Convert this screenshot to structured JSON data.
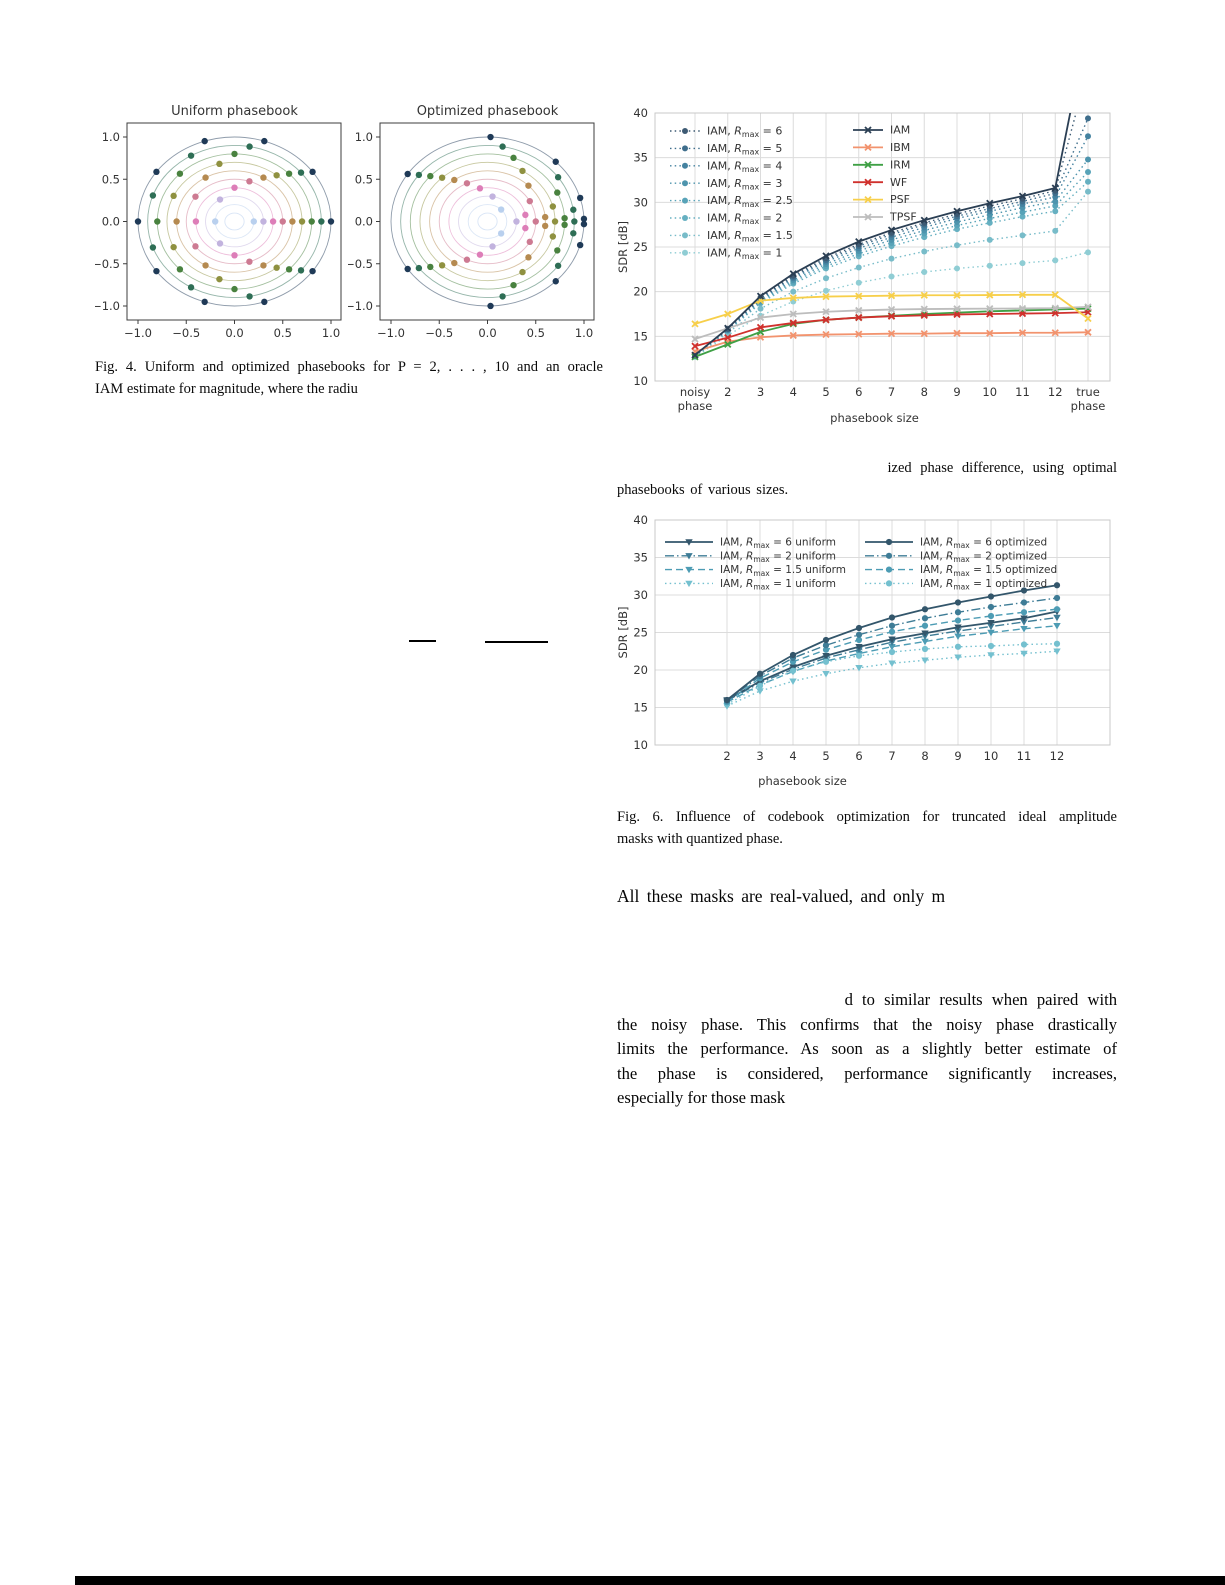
{
  "fig4": {
    "caption_lines": [
      "Fig. 4.   Uniform and optimized phasebooks for P = 2, . . . , 10 and an oracle",
      "IAM estimate for magnitude, where the radiu"
    ],
    "axis_ticks": [
      "−1.0",
      "−0.5",
      "0.0",
      "0.5",
      "1.0"
    ],
    "plots": [
      {
        "title": "Uniform phasebook",
        "angles_key": "uniform"
      },
      {
        "title": "Optimized phasebook",
        "angles_key": "optimized"
      }
    ],
    "extra_inner_circle_r": 0.1,
    "rings": [
      {
        "r": 0.2,
        "color": "#b9d0ee",
        "uniform": [
          0,
          180
        ],
        "optimized": [
          45,
          -45
        ]
      },
      {
        "r": 0.3,
        "color": "#c2b3de",
        "uniform": [
          0,
          120,
          240
        ],
        "optimized": [
          0,
          80,
          -80
        ]
      },
      {
        "r": 0.4,
        "color": "#dd7eb8",
        "uniform": [
          0,
          90,
          180,
          270
        ],
        "optimized": [
          11.3,
          -11.3,
          101.3,
          -101.3
        ]
      },
      {
        "r": 0.5,
        "color": "#cd7a92",
        "uniform": [
          0,
          72,
          144,
          216,
          288
        ],
        "optimized": [
          0,
          28.8,
          -28.8,
          115.2,
          -115.2
        ]
      },
      {
        "r": 0.6,
        "color": "#b58a50",
        "uniform": [
          0,
          60,
          120,
          180,
          240,
          300
        ],
        "optimized": [
          5,
          -5,
          45,
          -45,
          125,
          -125
        ]
      },
      {
        "r": 0.7,
        "color": "#8f9140",
        "uniform": [
          0,
          51.4,
          102.9,
          154.3,
          205.7,
          257.1,
          308.6
        ],
        "optimized": [
          0,
          14.7,
          -14.7,
          58.8,
          -58.8,
          132.2,
          -132.2
        ]
      },
      {
        "r": 0.8,
        "color": "#49823f",
        "uniform": [
          0,
          45,
          90,
          135,
          180,
          225,
          270,
          315
        ],
        "optimized": [
          2.8,
          -2.8,
          25.3,
          -25.3,
          70.3,
          -70.3,
          137.8,
          -137.8
        ]
      },
      {
        "r": 0.9,
        "color": "#2e6e55",
        "uniform": [
          0,
          40,
          80,
          120,
          160,
          200,
          240,
          280,
          320
        ],
        "optimized": [
          0,
          8.9,
          -8.9,
          35.6,
          -35.6,
          80,
          -80,
          142.2,
          -142.2
        ]
      },
      {
        "r": 1.0,
        "color": "#1f3a57",
        "uniform": [
          0,
          36,
          72,
          108,
          144,
          180,
          216,
          252,
          288,
          324
        ],
        "optimized": [
          1.8,
          -1.8,
          16.2,
          -16.2,
          45,
          -45,
          88.2,
          -88.2,
          145.8,
          -145.8
        ]
      }
    ]
  },
  "fig5_fragment": {
    "line1": "ized phase difference, using optimal",
    "line2": "phasebooks of various sizes."
  },
  "fig6_caption_lines": [
    "Fig. 6.   Influence of codebook optimization for truncated ideal amplitude",
    "masks with quantized phase."
  ],
  "fragments": {
    "all_masks": "All these masks are real-valued, and only m",
    "para_lines": [
      "d to similar results when paired with",
      "the noisy phase. This confirms that the noisy phase drastically",
      "limits the performance. As soon as a slightly better estimate of",
      "the phase is considered, performance significantly increases,",
      "especially for those mask"
    ]
  },
  "chart_data": [
    {
      "id": "chart-top",
      "type": "line",
      "title": "",
      "xlabel": "phasebook size",
      "ylabel": "SDR [dB]",
      "ylim": [
        10,
        40
      ],
      "yticks": [
        10,
        15,
        20,
        25,
        30,
        35,
        40
      ],
      "grid": true,
      "legend_position": "upper left",
      "categories": [
        "noisy|phase",
        "2",
        "3",
        "4",
        "5",
        "6",
        "7",
        "8",
        "9",
        "10",
        "11",
        "12",
        "true|phase"
      ],
      "series": [
        {
          "name": "IAM, R_max = 6",
          "color": "#3d5a73",
          "dash": "dotted",
          "marker": "circle",
          "values": [
            12.9,
            15.85,
            19.35,
            21.8,
            23.75,
            25.3,
            26.6,
            27.7,
            28.7,
            29.6,
            30.4,
            31.3,
            45
          ]
        },
        {
          "name": "IAM, R_max = 5",
          "color": "#3f6e8c",
          "dash": "dotted",
          "marker": "circle",
          "values": [
            12.9,
            15.8,
            19.25,
            21.65,
            23.55,
            25.1,
            26.4,
            27.5,
            28.45,
            29.3,
            30.1,
            31.0,
            39.4
          ]
        },
        {
          "name": "IAM, R_max = 4",
          "color": "#4482a0",
          "dash": "dotted",
          "marker": "circle",
          "values": [
            12.85,
            15.75,
            19.15,
            21.5,
            23.35,
            24.85,
            26.1,
            27.2,
            28.2,
            29.0,
            29.8,
            30.6,
            37.4
          ]
        },
        {
          "name": "IAM, R_max = 3",
          "color": "#4d94ad",
          "dash": "dotted",
          "marker": "circle",
          "values": [
            12.85,
            15.7,
            19.0,
            21.3,
            23.1,
            24.55,
            25.8,
            26.85,
            27.8,
            28.6,
            29.4,
            30.1,
            34.8
          ]
        },
        {
          "name": "IAM, R_max = 2.5",
          "color": "#58a3b8",
          "dash": "dotted",
          "marker": "circle",
          "values": [
            12.8,
            15.65,
            18.85,
            21.1,
            22.85,
            24.25,
            25.45,
            26.5,
            27.4,
            28.2,
            28.9,
            29.6,
            33.4
          ]
        },
        {
          "name": "IAM, R_max = 2",
          "color": "#66b0c1",
          "dash": "dotted",
          "marker": "circle",
          "values": [
            12.8,
            15.6,
            18.7,
            20.9,
            22.6,
            23.95,
            25.1,
            26.1,
            27.0,
            27.7,
            28.4,
            29.0,
            32.3
          ]
        },
        {
          "name": "IAM, R_max = 1.5",
          "color": "#78bcc9",
          "dash": "dotted",
          "marker": "circle",
          "values": [
            12.75,
            15.4,
            18.1,
            20.0,
            21.5,
            22.7,
            23.7,
            24.5,
            25.2,
            25.8,
            26.3,
            26.8,
            31.2
          ]
        },
        {
          "name": "IAM, R_max = 1",
          "color": "#8fcdd4",
          "dash": "dotted",
          "marker": "circle",
          "values": [
            12.7,
            15.1,
            17.3,
            18.9,
            20.1,
            21.0,
            21.7,
            22.2,
            22.6,
            22.9,
            23.2,
            23.5,
            24.4
          ]
        },
        {
          "name": "IAM",
          "color": "#2b3f54",
          "dash": "solid",
          "marker": "x",
          "values": [
            12.9,
            15.9,
            19.5,
            22.0,
            24.0,
            25.6,
            26.9,
            28.0,
            29.0,
            29.9,
            30.7,
            31.6,
            50
          ]
        },
        {
          "name": "IBM",
          "color": "#f2936e",
          "dash": "solid",
          "marker": "x",
          "values": [
            13.3,
            14.4,
            14.9,
            15.1,
            15.2,
            15.25,
            15.3,
            15.3,
            15.35,
            15.35,
            15.4,
            15.4,
            15.45
          ]
        },
        {
          "name": "IRM",
          "color": "#3fa045",
          "dash": "solid",
          "marker": "x",
          "values": [
            12.7,
            14.1,
            15.5,
            16.4,
            16.85,
            17.1,
            17.3,
            17.5,
            17.65,
            17.8,
            17.9,
            18.0,
            18.1
          ]
        },
        {
          "name": "WF",
          "color": "#d0312d",
          "dash": "solid",
          "marker": "x",
          "values": [
            13.9,
            14.85,
            16.0,
            16.5,
            16.85,
            17.1,
            17.25,
            17.35,
            17.45,
            17.5,
            17.55,
            17.6,
            17.7
          ]
        },
        {
          "name": "PSF",
          "color": "#f7cf4a",
          "dash": "solid",
          "marker": "x",
          "values": [
            16.4,
            17.5,
            19.0,
            19.3,
            19.45,
            19.5,
            19.55,
            19.6,
            19.6,
            19.62,
            19.65,
            19.65,
            17.0
          ]
        },
        {
          "name": "TPSF",
          "color": "#bdbdbd",
          "dash": "solid",
          "marker": "x",
          "values": [
            14.7,
            15.9,
            17.1,
            17.5,
            17.75,
            17.9,
            18.0,
            18.05,
            18.08,
            18.1,
            18.12,
            18.15,
            18.3
          ]
        }
      ],
      "legend_columns": [
        [
          0,
          1,
          2,
          3,
          4,
          5,
          6,
          7
        ],
        [
          8,
          9,
          10,
          11,
          12,
          13
        ]
      ],
      "draw_order": [
        7,
        6,
        5,
        4,
        3,
        2,
        1,
        0,
        9,
        10,
        11,
        13,
        12,
        8
      ]
    },
    {
      "id": "chart-bottom",
      "type": "line",
      "title": "",
      "xlabel": "phasebook size",
      "ylabel": "SDR [dB]",
      "ylim": [
        10,
        40
      ],
      "yticks": [
        10,
        15,
        20,
        25,
        30,
        35,
        40
      ],
      "grid": true,
      "legend_position": "upper left",
      "categories": [
        "2",
        "3",
        "4",
        "5",
        "6",
        "7",
        "8",
        "9",
        "10",
        "11",
        "12"
      ],
      "series": [
        {
          "name": "IAM, R_max = 6 uniform",
          "color": "#33566b",
          "dash": "solid",
          "marker": "triangle",
          "values": [
            16.0,
            18.5,
            20.4,
            21.9,
            23.1,
            24.1,
            24.9,
            25.7,
            26.3,
            26.9,
            27.8
          ]
        },
        {
          "name": "IAM, R_max = 2 uniform",
          "color": "#3e7c96",
          "dash": "dashdot",
          "marker": "triangle",
          "values": [
            15.9,
            18.3,
            20.1,
            21.6,
            22.7,
            23.7,
            24.5,
            25.2,
            25.8,
            26.4,
            27.0
          ]
        },
        {
          "name": "IAM, R_max = 1.5 uniform",
          "color": "#4d9cb4",
          "dash": "dashed",
          "marker": "triangle",
          "values": [
            15.7,
            18.0,
            19.8,
            21.2,
            22.2,
            23.1,
            23.8,
            24.5,
            25.0,
            25.5,
            25.9
          ]
        },
        {
          "name": "IAM, R_max = 1 uniform",
          "color": "#74c0cf",
          "dash": "dotted",
          "marker": "triangle",
          "values": [
            15.2,
            17.2,
            18.5,
            19.5,
            20.3,
            20.9,
            21.3,
            21.7,
            22.0,
            22.2,
            22.5
          ]
        },
        {
          "name": "IAM, R_max = 6 optimized",
          "color": "#33566b",
          "dash": "solid",
          "marker": "circle",
          "values": [
            16.0,
            19.5,
            22.0,
            24.0,
            25.6,
            27.0,
            28.1,
            29.0,
            29.8,
            30.6,
            31.3
          ]
        },
        {
          "name": "IAM, R_max = 2 optimized",
          "color": "#3e7c96",
          "dash": "dashdot",
          "marker": "circle",
          "values": [
            15.9,
            19.2,
            21.6,
            23.3,
            24.7,
            25.9,
            26.9,
            27.7,
            28.4,
            29.0,
            29.6
          ]
        },
        {
          "name": "IAM, R_max = 1.5 optimized",
          "color": "#4d9cb4",
          "dash": "dashed",
          "marker": "circle",
          "values": [
            15.7,
            18.9,
            21.1,
            22.7,
            24.0,
            25.1,
            25.9,
            26.6,
            27.2,
            27.7,
            28.1
          ]
        },
        {
          "name": "IAM, R_max = 1 optimized",
          "color": "#74c0cf",
          "dash": "dotted",
          "marker": "circle",
          "values": [
            15.4,
            17.9,
            19.9,
            21.1,
            21.9,
            22.4,
            22.8,
            23.1,
            23.2,
            23.4,
            23.5
          ]
        }
      ],
      "legend_columns": [
        [
          0,
          1,
          2,
          3
        ],
        [
          4,
          5,
          6,
          7
        ]
      ],
      "draw_order": [
        3,
        2,
        1,
        0,
        7,
        6,
        5,
        4
      ]
    }
  ]
}
